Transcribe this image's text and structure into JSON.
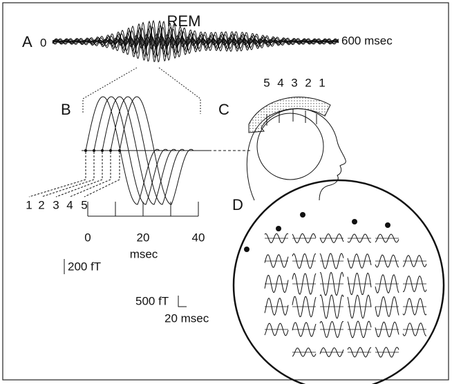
{
  "title": "REM",
  "panels": {
    "a": {
      "label": "A",
      "start": "0",
      "end": "600 msec"
    },
    "b": {
      "label": "B",
      "channels": [
        "1",
        "2",
        "3",
        "4",
        "5"
      ],
      "axis": {
        "ticks": [
          "0",
          "20",
          "40"
        ],
        "unit": "msec"
      },
      "scale": "200 fT"
    },
    "c": {
      "label": "C",
      "channels": [
        "5",
        "4",
        "3",
        "2",
        "1"
      ]
    },
    "d": {
      "label": "D",
      "scale_amplitude": "500 fT",
      "scale_time": "20 msec"
    }
  }
}
